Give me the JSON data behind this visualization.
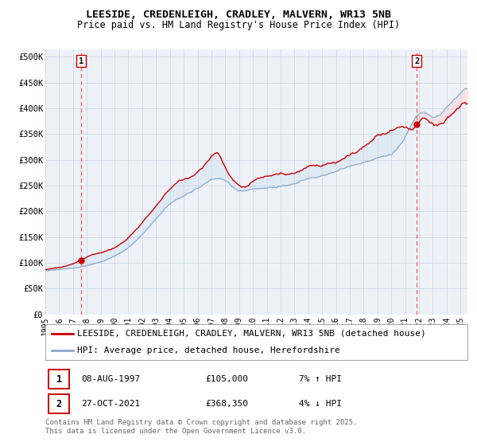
{
  "title": "LEESIDE, CREDENLEIGH, CRADLEY, MALVERN, WR13 5NB",
  "subtitle": "Price paid vs. HM Land Registry's House Price Index (HPI)",
  "ylabel_ticks": [
    "£0",
    "£50K",
    "£100K",
    "£150K",
    "£200K",
    "£250K",
    "£300K",
    "£350K",
    "£400K",
    "£450K",
    "£500K"
  ],
  "ytick_values": [
    0,
    50000,
    100000,
    150000,
    200000,
    250000,
    300000,
    350000,
    400000,
    450000,
    500000
  ],
  "ylim": [
    0,
    515000
  ],
  "xlim_min": 1995.0,
  "xlim_max": 2025.5,
  "line1_color": "#cc0000",
  "line2_color": "#88aacc",
  "fill_color": "#cce0f0",
  "background_color": "#eef2f8",
  "point1_x": 1997.583,
  "point1_y": 105000,
  "point2_x": 2021.833,
  "point2_y": 368350,
  "legend_label1": "LEESIDE, CREDENLEIGH, CRADLEY, MALVERN, WR13 5NB (detached house)",
  "legend_label2": "HPI: Average price, detached house, Herefordshire",
  "table_row1": [
    "1",
    "08-AUG-1997",
    "£105,000",
    "7% ↑ HPI"
  ],
  "table_row2": [
    "2",
    "27-OCT-2021",
    "£368,350",
    "4% ↓ HPI"
  ],
  "footer": "Contains HM Land Registry data © Crown copyright and database right 2025.\nThis data is licensed under the Open Government Licence v3.0.",
  "title_fontsize": 9.5,
  "subtitle_fontsize": 8.5,
  "tick_fontsize": 7.5,
  "legend_fontsize": 8,
  "table_fontsize": 8,
  "footer_fontsize": 6.5
}
